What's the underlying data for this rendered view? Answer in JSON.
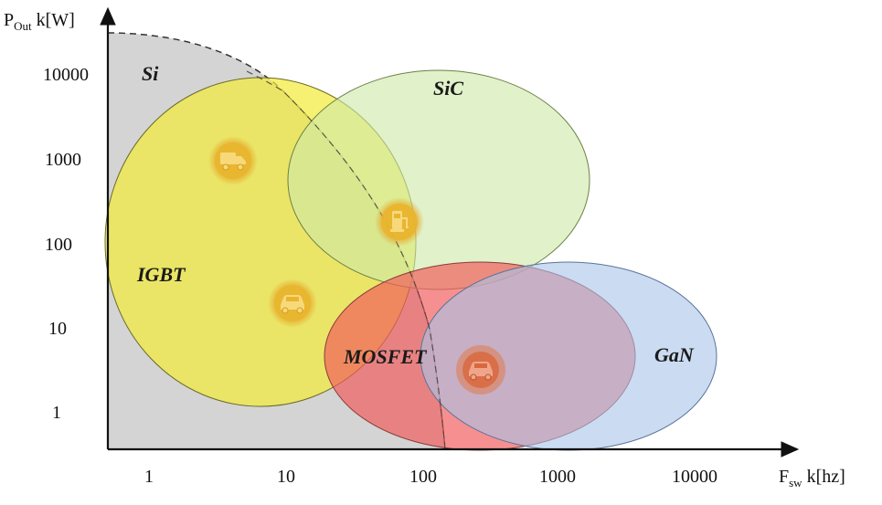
{
  "axes": {
    "y_title": {
      "main": "P",
      "sub": "Out",
      "rest": " k[W]"
    },
    "x_title": {
      "main": "F",
      "sub": "sw",
      "rest": " k[hz]"
    },
    "y_ticks": [
      "10000",
      "1000",
      "100",
      "10",
      "1"
    ],
    "x_ticks": [
      "1",
      "10",
      "100",
      "1000",
      "10000"
    ]
  },
  "regions": {
    "si": {
      "label": "Si",
      "color": "#d4d4d4"
    },
    "igbt": {
      "label": "IGBT",
      "color": "#f2ec3c"
    },
    "sic": {
      "label": "SiC",
      "color": "#cfe8a8"
    },
    "mosfet": {
      "label": "MOSFET",
      "color": "#f25c5c"
    },
    "gan": {
      "label": "GaN",
      "color": "#a9c4ea"
    }
  },
  "icons": [
    {
      "name": "truck-icon",
      "region": "igbt"
    },
    {
      "name": "charging-station-icon",
      "region": "sic"
    },
    {
      "name": "car-icon",
      "region": "igbt"
    },
    {
      "name": "car-icon",
      "region": "mosfet"
    }
  ],
  "colors": {
    "icon_badge": "#e9b52e",
    "axis": "#111111"
  }
}
